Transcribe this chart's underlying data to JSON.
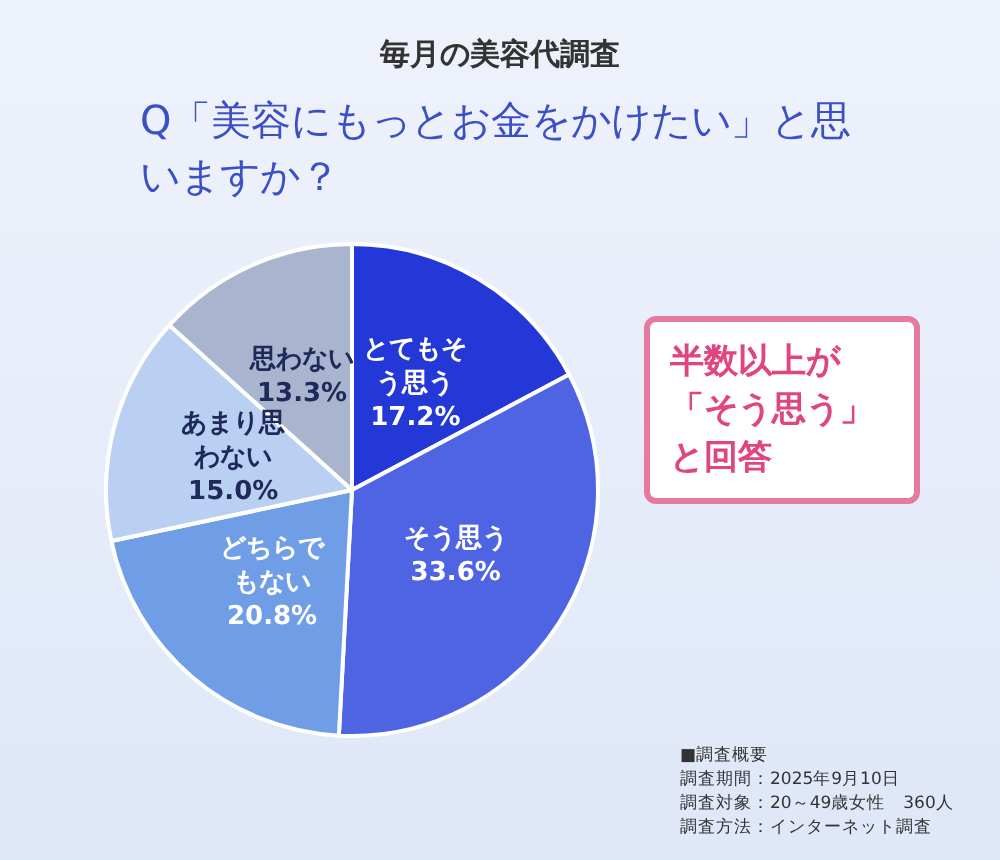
{
  "chart_data": {
    "type": "pie",
    "subtitle": "毎月の美容代調査",
    "title": "Q「美容にもっとお金をかけたい」と思いますか？",
    "categories": [
      "とてもそう思う",
      "そう思う",
      "どちらでもない",
      "あまり思わない",
      "思わない"
    ],
    "values": [
      17.2,
      33.6,
      20.8,
      15.0,
      13.3
    ],
    "value_labels": [
      "17.2%",
      "33.6%",
      "20.8%",
      "15.0%",
      "13.3%"
    ],
    "colors": [
      "#2338d6",
      "#4f64e2",
      "#6f9ee6",
      "#b9d0f2",
      "#a9b4cf"
    ],
    "data_labels": true,
    "legend": false,
    "annotations": [
      "半数以上が「そう思う」と回答",
      "■調査概要",
      "調査期間：2025年9月10日",
      "調査対象：20～49歳女性　360人",
      "調査方法：インターネット調査"
    ]
  }
}
